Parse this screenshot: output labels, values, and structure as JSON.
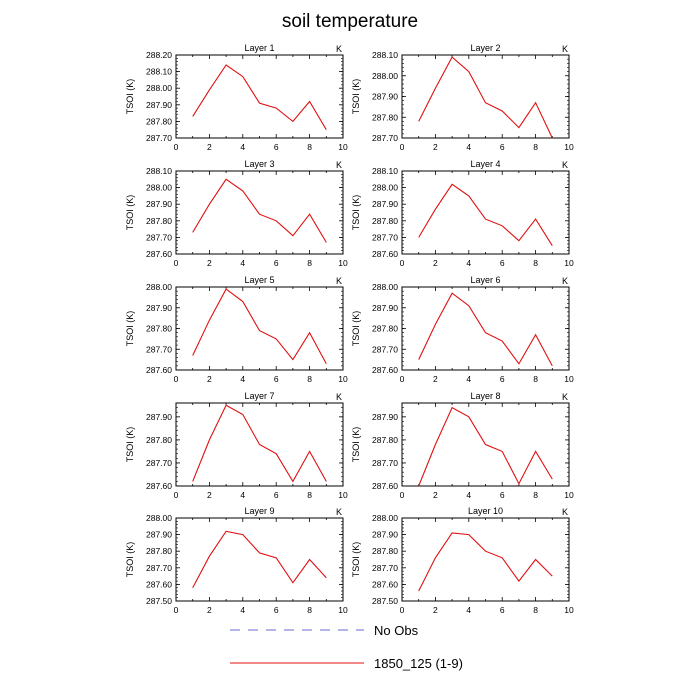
{
  "title": "soil temperature",
  "units": "K",
  "ylabel": "TSOI  (K)",
  "legend": {
    "entries": [
      {
        "label": "No Obs",
        "color": "#6a6ad6",
        "dashed": true
      },
      {
        "label": "1850_125 (1-9)",
        "color": "#e01010",
        "dashed": false
      }
    ]
  },
  "chart_data": [
    {
      "type": "line",
      "title": "Layer 1",
      "xlim": [
        0,
        10
      ],
      "xticks": [
        0,
        2,
        4,
        6,
        8,
        10
      ],
      "ylim": [
        287.7,
        288.2
      ],
      "yticks": [
        "287.70",
        "287.80",
        "287.90",
        "288.00",
        "288.10",
        "288.20"
      ],
      "series": [
        {
          "x": [
            1,
            2,
            3,
            4,
            5,
            6,
            7,
            8,
            9
          ],
          "y": [
            287.83,
            287.99,
            288.14,
            288.07,
            287.91,
            287.88,
            287.8,
            287.92,
            287.75
          ]
        }
      ]
    },
    {
      "type": "line",
      "title": "Layer 2",
      "xlim": [
        0,
        10
      ],
      "xticks": [
        0,
        2,
        4,
        6,
        8,
        10
      ],
      "ylim": [
        287.7,
        288.1
      ],
      "yticks": [
        "287.70",
        "287.80",
        "287.90",
        "288.00",
        "288.10"
      ],
      "series": [
        {
          "x": [
            1,
            2,
            3,
            4,
            5,
            6,
            7,
            8,
            9
          ],
          "y": [
            287.78,
            287.94,
            288.09,
            288.02,
            287.87,
            287.83,
            287.75,
            287.87,
            287.7
          ]
        }
      ]
    },
    {
      "type": "line",
      "title": "Layer 3",
      "xlim": [
        0,
        10
      ],
      "xticks": [
        0,
        2,
        4,
        6,
        8,
        10
      ],
      "ylim": [
        287.6,
        288.1
      ],
      "yticks": [
        "287.60",
        "287.70",
        "287.80",
        "287.90",
        "288.00",
        "288.10"
      ],
      "series": [
        {
          "x": [
            1,
            2,
            3,
            4,
            5,
            6,
            7,
            8,
            9
          ],
          "y": [
            287.73,
            287.9,
            288.05,
            287.98,
            287.84,
            287.8,
            287.71,
            287.84,
            287.67
          ]
        }
      ]
    },
    {
      "type": "line",
      "title": "Layer 4",
      "xlim": [
        0,
        10
      ],
      "xticks": [
        0,
        2,
        4,
        6,
        8,
        10
      ],
      "ylim": [
        287.6,
        288.1
      ],
      "yticks": [
        "287.60",
        "287.70",
        "287.80",
        "287.90",
        "288.00",
        "288.10"
      ],
      "series": [
        {
          "x": [
            1,
            2,
            3,
            4,
            5,
            6,
            7,
            8,
            9
          ],
          "y": [
            287.7,
            287.87,
            288.02,
            287.95,
            287.81,
            287.77,
            287.68,
            287.81,
            287.65
          ]
        }
      ]
    },
    {
      "type": "line",
      "title": "Layer 5",
      "xlim": [
        0,
        10
      ],
      "xticks": [
        0,
        2,
        4,
        6,
        8,
        10
      ],
      "ylim": [
        287.6,
        288.0
      ],
      "yticks": [
        "287.60",
        "287.70",
        "287.80",
        "287.90",
        "288.00"
      ],
      "series": [
        {
          "x": [
            1,
            2,
            3,
            4,
            5,
            6,
            7,
            8,
            9
          ],
          "y": [
            287.67,
            287.84,
            287.99,
            287.93,
            287.79,
            287.75,
            287.65,
            287.78,
            287.63
          ]
        }
      ]
    },
    {
      "type": "line",
      "title": "Layer 6",
      "xlim": [
        0,
        10
      ],
      "xticks": [
        0,
        2,
        4,
        6,
        8,
        10
      ],
      "ylim": [
        287.6,
        288.0
      ],
      "yticks": [
        "287.60",
        "287.70",
        "287.80",
        "287.90",
        "288.00"
      ],
      "series": [
        {
          "x": [
            1,
            2,
            3,
            4,
            5,
            6,
            7,
            8,
            9
          ],
          "y": [
            287.65,
            287.82,
            287.97,
            287.91,
            287.78,
            287.74,
            287.63,
            287.77,
            287.62
          ]
        }
      ]
    },
    {
      "type": "line",
      "title": "Layer 7",
      "xlim": [
        0,
        10
      ],
      "xticks": [
        0,
        2,
        4,
        6,
        8,
        10
      ],
      "ylim": [
        287.6,
        287.96
      ],
      "yticks": [
        "287.60",
        "287.70",
        "287.80",
        "287.90"
      ],
      "series": [
        {
          "x": [
            1,
            2,
            3,
            4,
            5,
            6,
            7,
            8,
            9
          ],
          "y": [
            287.62,
            287.8,
            287.95,
            287.91,
            287.78,
            287.74,
            287.62,
            287.75,
            287.62
          ]
        }
      ]
    },
    {
      "type": "line",
      "title": "Layer 8",
      "xlim": [
        0,
        10
      ],
      "xticks": [
        0,
        2,
        4,
        6,
        8,
        10
      ],
      "ylim": [
        287.6,
        287.96
      ],
      "yticks": [
        "287.60",
        "287.70",
        "287.80",
        "287.90"
      ],
      "series": [
        {
          "x": [
            1,
            2,
            3,
            4,
            5,
            6,
            7,
            8,
            9
          ],
          "y": [
            287.6,
            287.78,
            287.94,
            287.9,
            287.78,
            287.75,
            287.61,
            287.75,
            287.63
          ]
        }
      ]
    },
    {
      "type": "line",
      "title": "Layer 9",
      "xlim": [
        0,
        10
      ],
      "xticks": [
        0,
        2,
        4,
        6,
        8,
        10
      ],
      "ylim": [
        287.5,
        288.0
      ],
      "yticks": [
        "287.50",
        "287.60",
        "287.70",
        "287.80",
        "287.90",
        "288.00"
      ],
      "series": [
        {
          "x": [
            1,
            2,
            3,
            4,
            5,
            6,
            7,
            8,
            9
          ],
          "y": [
            287.58,
            287.77,
            287.92,
            287.9,
            287.79,
            287.76,
            287.61,
            287.75,
            287.64
          ]
        }
      ]
    },
    {
      "type": "line",
      "title": "Layer 10",
      "xlim": [
        0,
        10
      ],
      "xticks": [
        0,
        2,
        4,
        6,
        8,
        10
      ],
      "ylim": [
        287.5,
        288.0
      ],
      "yticks": [
        "287.50",
        "287.60",
        "287.70",
        "287.80",
        "287.90",
        "288.00"
      ],
      "series": [
        {
          "x": [
            1,
            2,
            3,
            4,
            5,
            6,
            7,
            8,
            9
          ],
          "y": [
            287.56,
            287.76,
            287.91,
            287.9,
            287.8,
            287.76,
            287.62,
            287.75,
            287.65
          ]
        }
      ]
    }
  ]
}
